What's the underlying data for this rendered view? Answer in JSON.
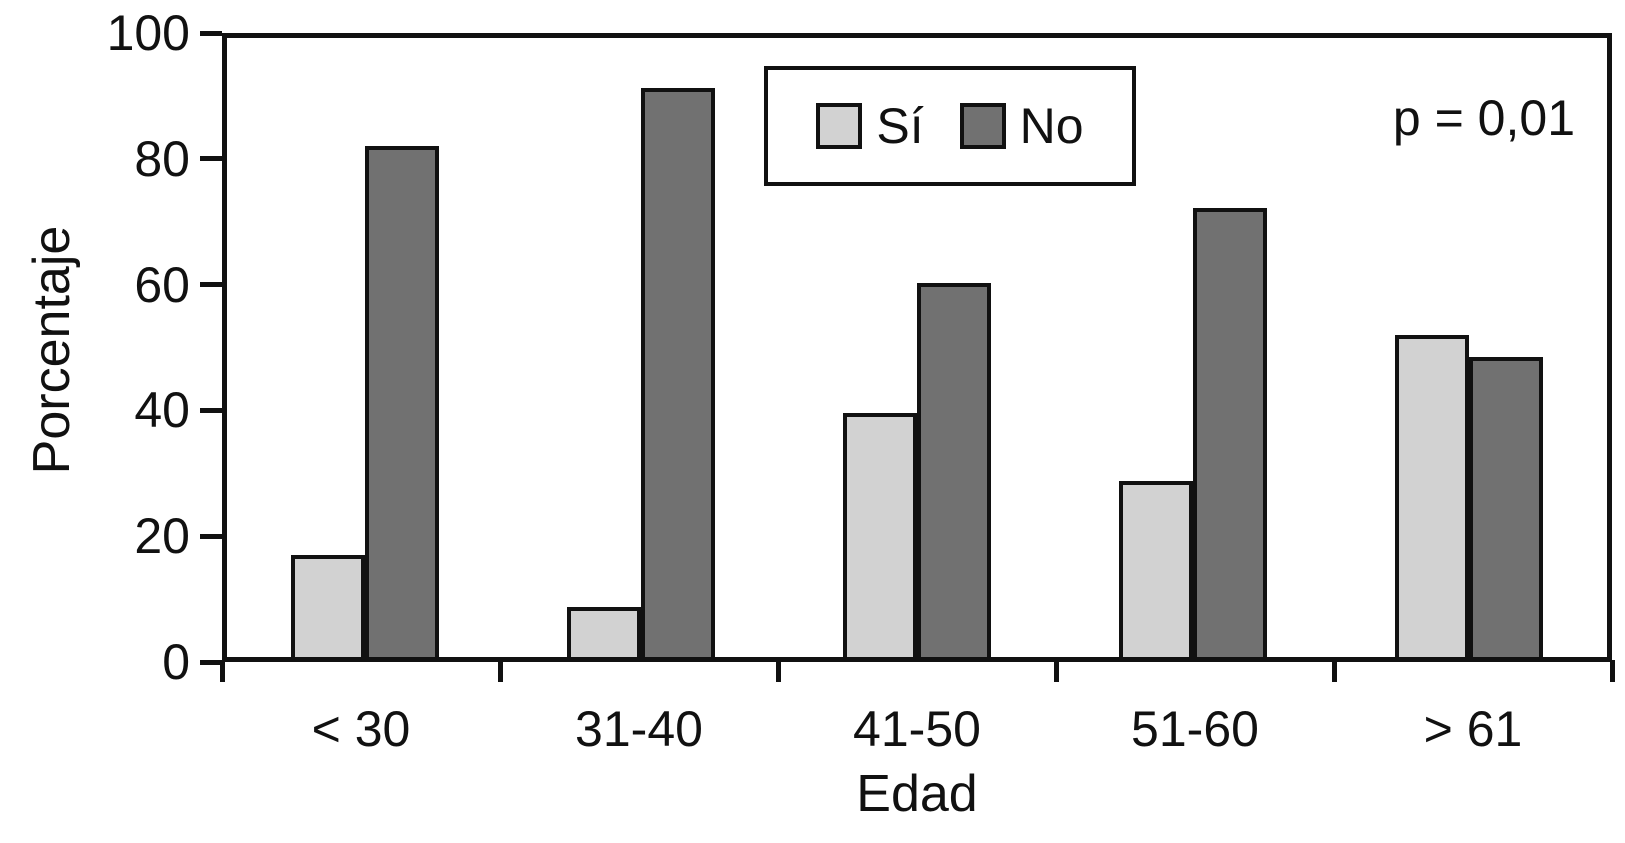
{
  "chart_data": {
    "type": "bar",
    "title": "",
    "xlabel": "Edad",
    "ylabel": "Porcentaje",
    "categories": [
      "< 30",
      "31-40",
      "41-50",
      "51-60",
      "> 61"
    ],
    "series": [
      {
        "name": "Sí",
        "color": "#d2d2d2",
        "values": [
          16.5,
          8,
          39.5,
          28.5,
          52
        ]
      },
      {
        "name": "No",
        "color": "#717171",
        "values": [
          82.5,
          92,
          60.5,
          72.5,
          48.5
        ]
      }
    ],
    "ylim": [
      0,
      100
    ],
    "yticks": [
      0,
      20,
      40,
      60,
      80,
      100
    ],
    "grid": false,
    "legend_position": "inside-top-center",
    "annotation": "p = 0,01",
    "outline_color": "#111111",
    "background_color": "#ffffff"
  }
}
